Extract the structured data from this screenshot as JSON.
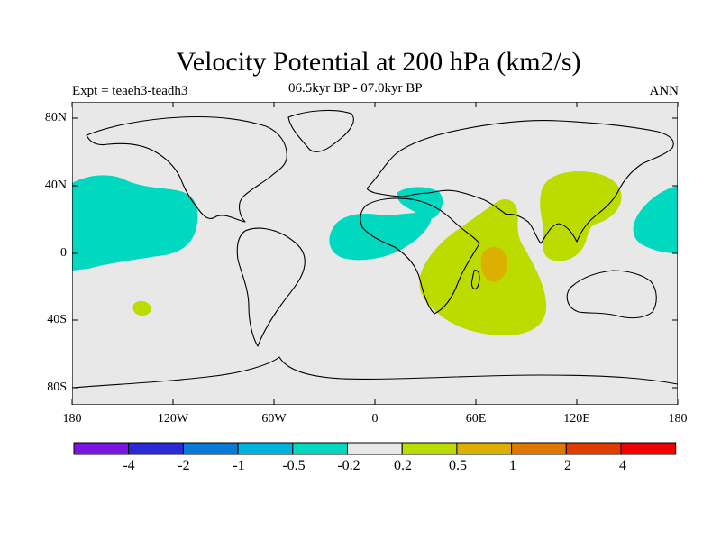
{
  "header": {
    "title": "Velocity Potential at 200 hPa (km2/s)",
    "subtitle": "06.5kyr BP - 07.0kyr BP",
    "experiment": "Expt = teaeh3-teadh3",
    "season": "ANN"
  },
  "map": {
    "projection": "cylindrical-equidistant",
    "lon_range": [
      -180,
      180
    ],
    "lat_range": [
      -90,
      90
    ],
    "lat_labels": [
      "80N",
      "40N",
      "0",
      "40S",
      "80S"
    ],
    "lon_labels": [
      "180",
      "120W",
      "60W",
      "0",
      "60E",
      "120E",
      "180"
    ],
    "background_color": "#e8e8e8"
  },
  "colorbar": {
    "colors": [
      "#7a14e0",
      "#2a2ad8",
      "#0a7ad8",
      "#00b4e0",
      "#00d8c0",
      "#e8e8e8",
      "#bcdc00",
      "#dcb000",
      "#e07800",
      "#e03c00",
      "#f00000"
    ],
    "labels": [
      "-4",
      "-2",
      "-1",
      "-0.5",
      "-0.2",
      "0.2",
      "0.5",
      "1",
      "2",
      "4"
    ]
  },
  "chart_data": {
    "type": "heatmap",
    "title": "Velocity Potential at 200 hPa (km2/s)",
    "subtitle": "06.5kyr BP - 07.0kyr BP",
    "units": "km2/s",
    "levels": [
      -4,
      -2,
      -1,
      -0.5,
      -0.2,
      0.2,
      0.5,
      1,
      2,
      4
    ],
    "regions": [
      {
        "name": "north-pacific-negative",
        "range": "-0.5 to -0.2",
        "lon_center": -150,
        "lat_center": 20
      },
      {
        "name": "central-atlantic-negative",
        "range": "-0.5 to -0.2",
        "lon_center": -20,
        "lat_center": 10
      },
      {
        "name": "mediterranean-negative",
        "range": "-0.5 to -0.2",
        "lon_center": 25,
        "lat_center": 36
      },
      {
        "name": "west-pacific-negative",
        "range": "-0.5 to -0.2",
        "lon_center": 170,
        "lat_center": 15
      },
      {
        "name": "indian-ocean-positive",
        "range": "0.2 to 0.5",
        "lon_center": 70,
        "lat_center": -15
      },
      {
        "name": "east-asia-positive",
        "range": "0.2 to 0.5",
        "lon_center": 120,
        "lat_center": 30
      },
      {
        "name": "south-pacific-positive-patch",
        "range": "0.2 to 0.5",
        "lon_center": -145,
        "lat_center": -32
      },
      {
        "name": "indian-ocean-core",
        "range": "0.5 to 1",
        "lon_center": 72,
        "lat_center": -10
      }
    ]
  }
}
